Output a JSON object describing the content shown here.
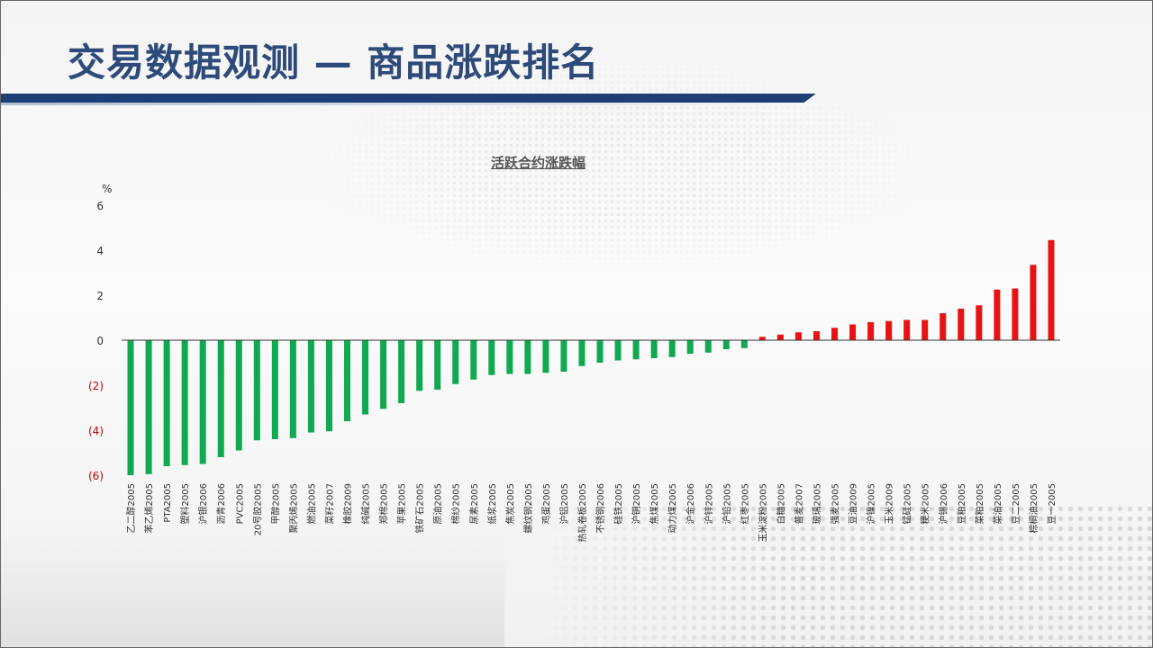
{
  "slide": {
    "title": "交易数据观测 — 商品涨跌排名"
  },
  "colors": {
    "negative": "#10a850",
    "positive": "#e81212",
    "title": "#2d4a7a",
    "bar_accent": "#1d3f75"
  },
  "chart_data": {
    "type": "bar",
    "title": "活跃合约涨跌幅",
    "ylabel": "%",
    "ylim": [
      -6,
      6
    ],
    "yticks": [
      {
        "value": 6,
        "label": "6"
      },
      {
        "value": 4,
        "label": "4"
      },
      {
        "value": 2,
        "label": "2"
      },
      {
        "value": 0,
        "label": "0"
      },
      {
        "value": -2,
        "label": "(2)"
      },
      {
        "value": -4,
        "label": "(4)"
      },
      {
        "value": -6,
        "label": "(6)"
      }
    ],
    "grid": false,
    "legend": "none",
    "categories": [
      "乙二醇2005",
      "苯乙烯2005",
      "PTA2005",
      "塑料2005",
      "沪银2006",
      "沥青2006",
      "PVC2005",
      "20号胶2005",
      "甲醇2005",
      "聚丙烯2005",
      "燃油2005",
      "菜籽2007",
      "橡胶2009",
      "纯碱2005",
      "郑棉2005",
      "苹果2005",
      "铁矿石2005",
      "原油2005",
      "棉纱2005",
      "尿素2005",
      "纸浆2005",
      "焦炭2005",
      "螺纹钢2005",
      "鸡蛋2005",
      "沪铝2005",
      "热轧卷板2005",
      "不锈钢2006",
      "硅铁2005",
      "沪铜2005",
      "焦煤2005",
      "动力煤2005",
      "沪金2006",
      "沪锌2005",
      "沪铅2005",
      "红枣2005",
      "玉米淀粉2005",
      "白糖2005",
      "普麦2007",
      "玻璃2005",
      "强麦2005",
      "豆油2009",
      "沪镍2005",
      "玉米2009",
      "锰硅2005",
      "粳米2005",
      "沪锡2006",
      "豆粕2005",
      "菜粕2005",
      "菜油2005",
      "豆二2005",
      "棕榈油2005",
      "豆一2005"
    ],
    "values": [
      -6.0,
      -5.95,
      -5.6,
      -5.55,
      -5.5,
      -5.2,
      -4.9,
      -4.45,
      -4.4,
      -4.35,
      -4.1,
      -4.05,
      -3.6,
      -3.3,
      -3.05,
      -2.8,
      -2.25,
      -2.2,
      -1.95,
      -1.75,
      -1.55,
      -1.5,
      -1.5,
      -1.45,
      -1.4,
      -1.15,
      -1.0,
      -0.9,
      -0.85,
      -0.8,
      -0.75,
      -0.6,
      -0.55,
      -0.4,
      -0.35,
      0.15,
      0.25,
      0.35,
      0.4,
      0.55,
      0.7,
      0.8,
      0.85,
      0.9,
      0.9,
      1.2,
      1.4,
      1.55,
      2.25,
      2.3,
      3.35,
      4.45
    ]
  }
}
